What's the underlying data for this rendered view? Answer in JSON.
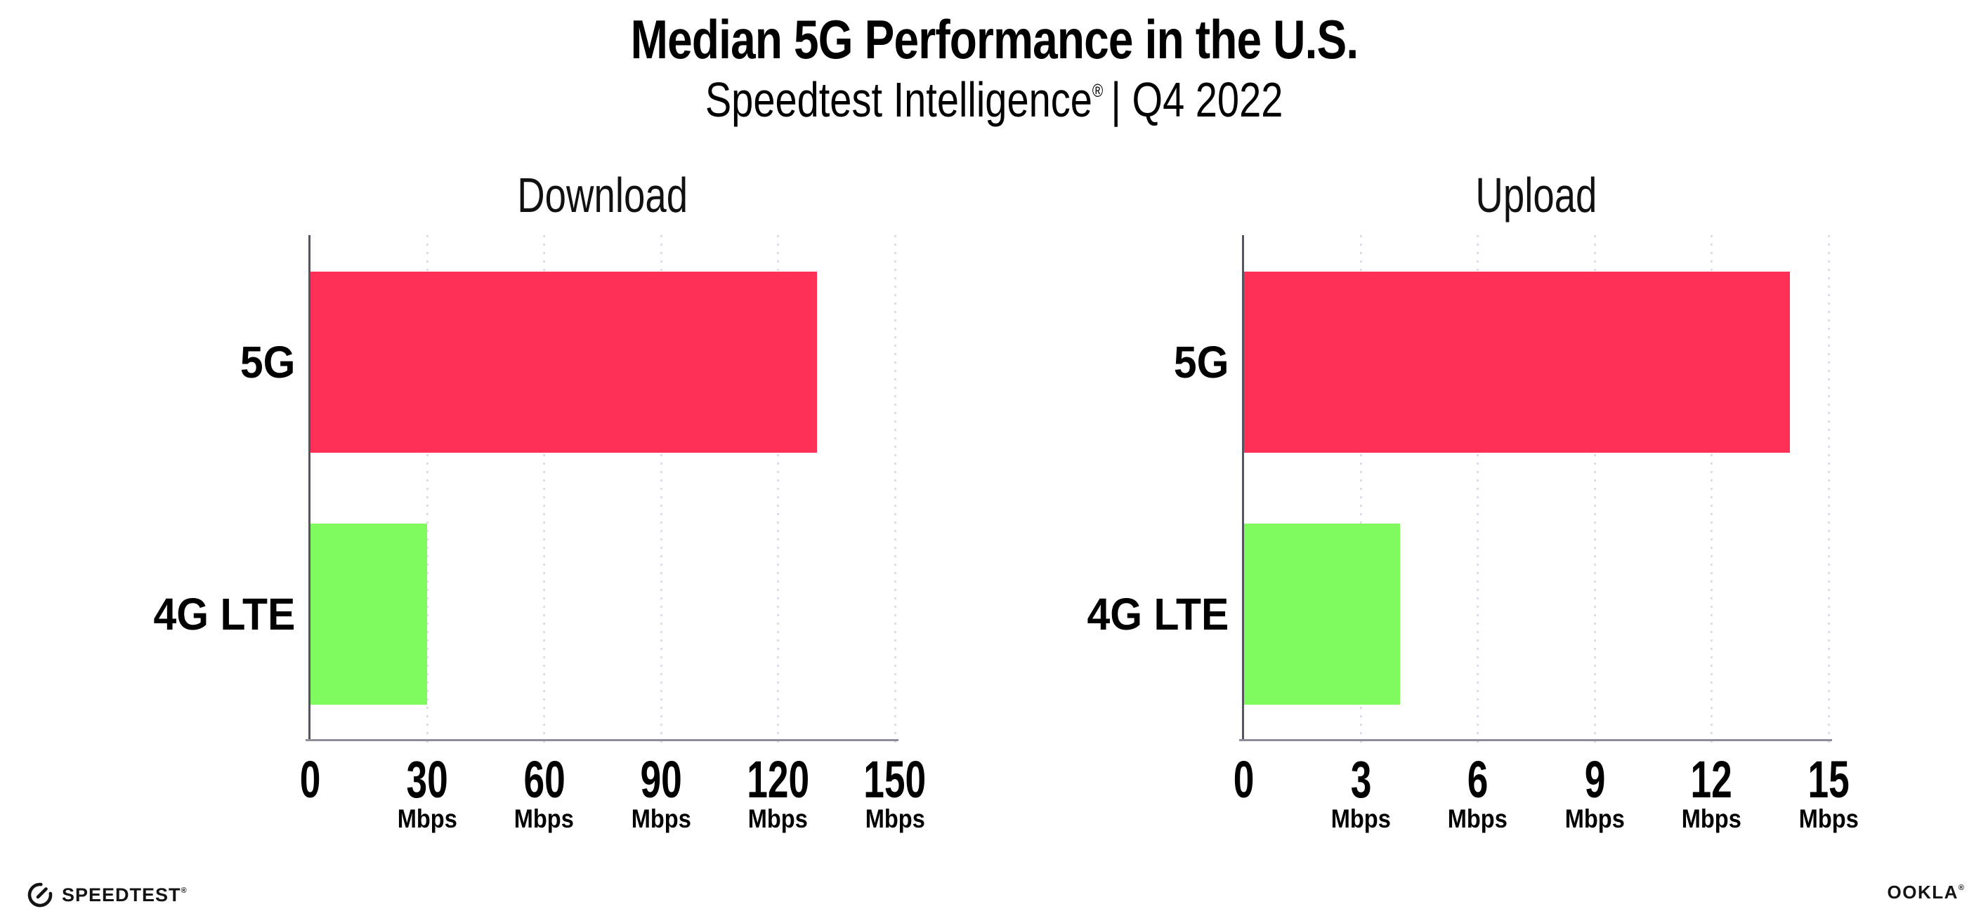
{
  "header": {
    "title": "Median 5G Performance in the U.S.",
    "subtitle_left": "Speedtest Intelligence",
    "subtitle_reg": "®",
    "subtitle_right": "| Q4 2022"
  },
  "chart_data": [
    {
      "type": "bar",
      "orientation": "horizontal",
      "title": "Download",
      "categories": [
        "5G",
        "4G LTE"
      ],
      "values": [
        130,
        30
      ],
      "unit": "Mbps",
      "xlim": [
        0,
        150
      ],
      "xticks": [
        0,
        30,
        60,
        90,
        120,
        150
      ],
      "bar_colors": [
        "#FF2F56",
        "#80FB5F"
      ],
      "grid": "dotted-vertical",
      "legend": "none"
    },
    {
      "type": "bar",
      "orientation": "horizontal",
      "title": "Upload",
      "categories": [
        "5G",
        "4G LTE"
      ],
      "values": [
        14,
        4
      ],
      "unit": "Mbps",
      "xlim": [
        0,
        15
      ],
      "xticks": [
        0,
        3,
        6,
        9,
        12,
        15
      ],
      "bar_colors": [
        "#FF2F56",
        "#80FB5F"
      ],
      "grid": "dotted-vertical",
      "legend": "none"
    }
  ],
  "footer": {
    "speedtest_label": "SPEEDTEST",
    "speedtest_mark": "®",
    "ookla_label": "OOKLA",
    "ookla_mark": "®"
  },
  "colors": {
    "bar_5g": "#FF2F56",
    "bar_4g_lte": "#80FB5F",
    "gridline": "#DCDCEA",
    "x_axis": "#8E8E98",
    "y_axis": "#55555F",
    "text": "#000000",
    "background": "#FFFFFF"
  }
}
